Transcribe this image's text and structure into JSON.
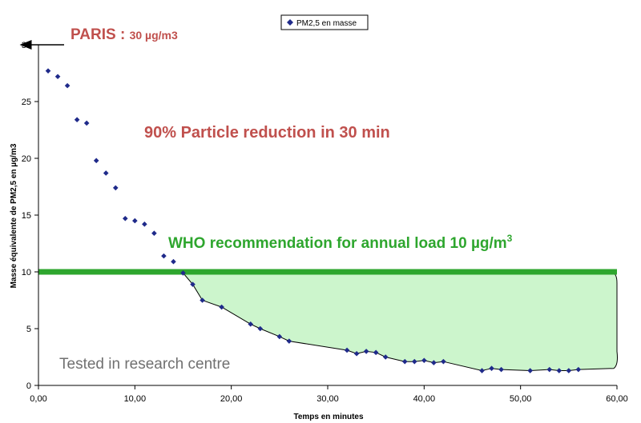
{
  "chart_data": {
    "type": "scatter",
    "title": "",
    "xlabel": "Temps en minutes",
    "ylabel": "Masse équivalente de PM2,5 en µg/m3",
    "xlim": [
      0,
      60
    ],
    "ylim": [
      0,
      30
    ],
    "x_ticks": [
      0,
      10,
      20,
      30,
      40,
      50,
      60
    ],
    "x_tick_labels": [
      "0,00",
      "10,00",
      "20,00",
      "30,00",
      "40,00",
      "50,00",
      "60,00"
    ],
    "y_ticks": [
      0,
      5,
      10,
      15,
      20,
      25,
      30
    ],
    "y_tick_labels": [
      "0",
      "5",
      "10",
      "15",
      "20",
      "25",
      "30"
    ],
    "grid": false,
    "legend_position": "top-center",
    "series": [
      {
        "name": "PM2,5 en masse",
        "color": "#1f2a8a",
        "marker": "diamond",
        "x": [
          1,
          2,
          3,
          4,
          5,
          6,
          7,
          8,
          9,
          10,
          11,
          12,
          13,
          14,
          15,
          16,
          17,
          19,
          22,
          23,
          25,
          26,
          32,
          33,
          34,
          35,
          36,
          38,
          39,
          40,
          41,
          42,
          46,
          47,
          48,
          51,
          53,
          54,
          55,
          56
        ],
        "y": [
          27.7,
          27.2,
          26.4,
          23.4,
          23.1,
          19.8,
          18.7,
          17.4,
          14.7,
          14.5,
          14.2,
          13.4,
          11.4,
          10.9,
          9.9,
          8.9,
          7.5,
          6.9,
          5.4,
          5.0,
          4.3,
          3.9,
          3.1,
          2.8,
          3.0,
          2.9,
          2.5,
          2.1,
          2.1,
          2.2,
          2.0,
          2.1,
          1.3,
          1.5,
          1.4,
          1.3,
          1.4,
          1.3,
          1.3,
          1.4
        ]
      }
    ],
    "reference_line": {
      "y": 10,
      "color": "#2ea62e"
    },
    "annotations": {
      "paris_label": "PARIS",
      "paris_sep": " : ",
      "paris_value": "30 µg/m3",
      "reduction": "90% Particle reduction in 30 min",
      "who_text": "WHO recommendation for annual load 10 µg/m",
      "who_sup": "3",
      "tested": "Tested in research centre"
    },
    "colors": {
      "annotation_red": "#c0504d",
      "annotation_green": "#2ea62e",
      "area_fill": "#ccf5cc",
      "gray_text": "#707070"
    }
  }
}
